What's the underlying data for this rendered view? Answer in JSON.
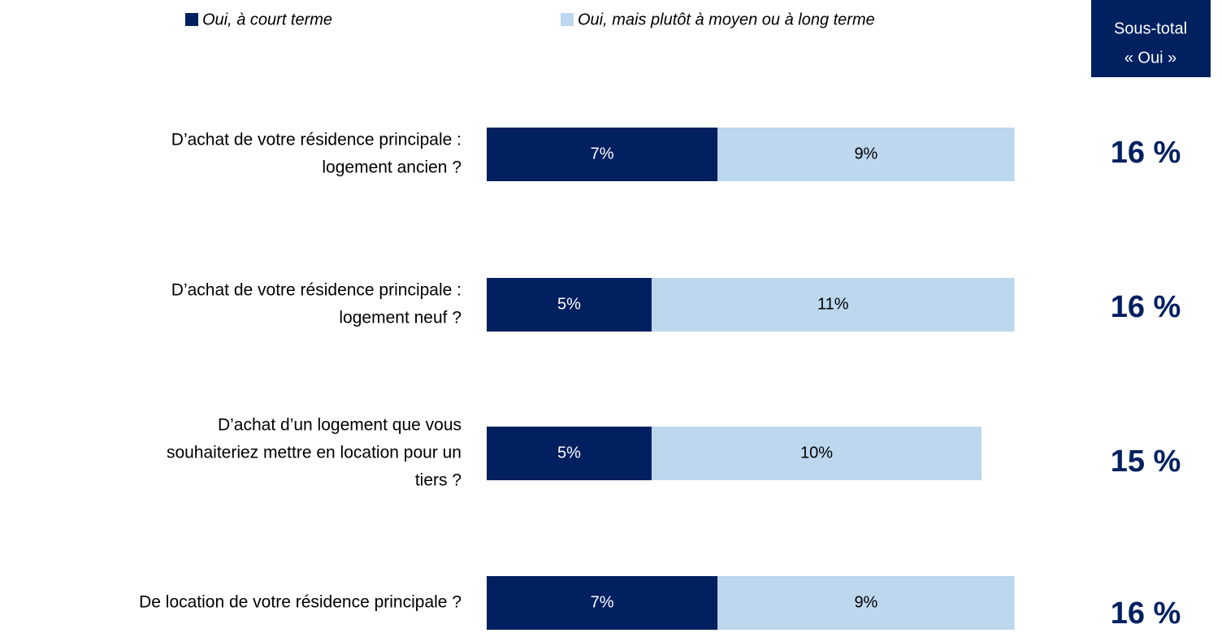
{
  "chart_data": {
    "type": "stacked-bar",
    "categories": [
      [
        "D’achat de votre résidence principale :",
        "logement ancien ?"
      ],
      [
        "D’achat de votre résidence principale :",
        "logement neuf ?"
      ],
      [
        "D’achat d’un logement que vous",
        "souhaiteriez mettre en location pour un",
        "tiers ?"
      ],
      [
        "De location de votre résidence principale ?"
      ]
    ],
    "series": [
      {
        "name": "Oui, à court terme",
        "color": "#002060",
        "label_color": "#ffffff",
        "values": [
          7,
          5,
          5,
          7
        ],
        "value_labels": [
          "7%",
          "5%",
          "5%",
          "7%"
        ]
      },
      {
        "name": "Oui, mais plutôt à moyen ou à long terme",
        "color": "#bdd7ee",
        "label_color": "#000000",
        "values": [
          9,
          11,
          10,
          9
        ],
        "value_labels": [
          "9%",
          "11%",
          "10%",
          "9%"
        ]
      }
    ],
    "subtotal_header": [
      "Sous-total",
      "« Oui »"
    ],
    "subtotals": {
      "values": [
        16,
        16,
        15,
        16
      ],
      "value_labels": [
        "16 %",
        "16 %",
        "15 %",
        "16 %"
      ],
      "color": "#002060"
    }
  }
}
